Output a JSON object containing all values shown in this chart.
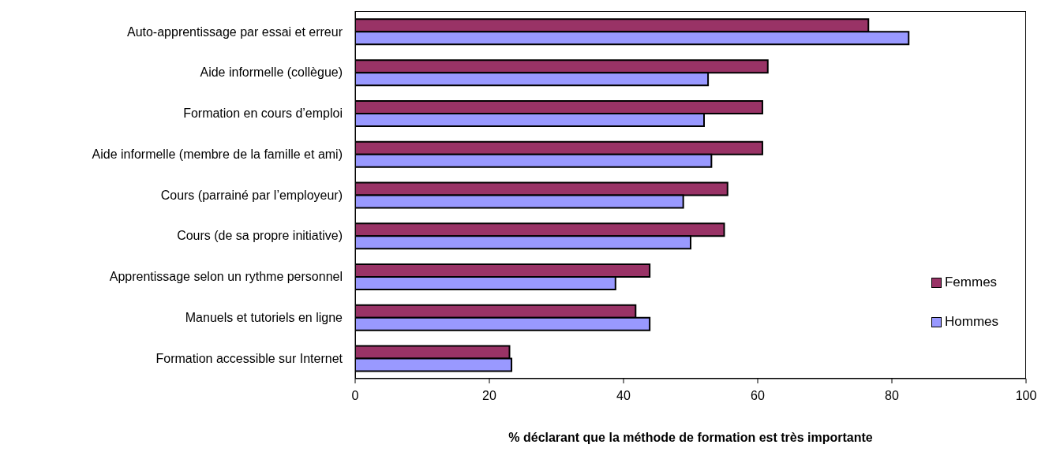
{
  "chart_data": {
    "type": "bar",
    "orientation": "horizontal",
    "xlabel": "% déclarant que la méthode de formation est très importante",
    "categories": [
      "Auto-apprentissage par essai et erreur",
      "Aide informelle (collègue)",
      "Formation en cours d’emploi",
      "Aide informelle (membre de la famille et ami)",
      "Cours (parrainé par l’employeur)",
      "Cours (de sa propre initiative)",
      "Apprentissage selon un rythme personnel",
      "Manuels et tutoriels en ligne",
      "Formation accessible sur Internet"
    ],
    "series": [
      {
        "name": "Femmes",
        "color": "#993366",
        "values": [
          76.5,
          61.5,
          60.7,
          60.7,
          55.5,
          55.0,
          43.9,
          41.8,
          23.0
        ]
      },
      {
        "name": "Hommes",
        "color": "#9999ff",
        "values": [
          82.5,
          52.6,
          52.0,
          53.1,
          48.9,
          50.0,
          38.8,
          43.9,
          23.3
        ]
      }
    ],
    "xlim": [
      0,
      100
    ],
    "xticks": [
      0,
      20,
      40,
      60,
      80,
      100
    ],
    "legend": "right"
  }
}
